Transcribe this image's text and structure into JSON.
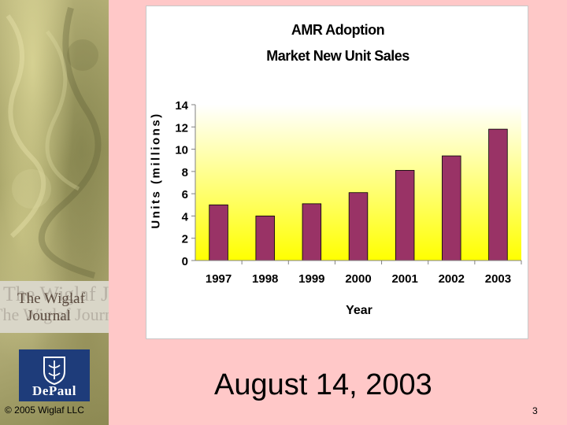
{
  "branding": {
    "journal_logo": "The Wiglaf Journal",
    "university_logo": "DePaul"
  },
  "footer": {
    "copyright": "© 2005 Wiglaf LLC",
    "date": "August 14, 2003",
    "slide_number": "3"
  },
  "chart_data": {
    "type": "bar",
    "title": "AMR Adoption",
    "subtitle": "Market New Unit Sales",
    "xlabel": "Year",
    "ylabel": "Units (millions)",
    "categories": [
      "1997",
      "1998",
      "1999",
      "2000",
      "2001",
      "2002",
      "2003"
    ],
    "values": [
      5.0,
      4.0,
      5.1,
      6.1,
      8.1,
      9.4,
      11.8
    ],
    "ylim": [
      0,
      14
    ],
    "yticks": [
      0,
      2,
      4,
      6,
      8,
      10,
      12,
      14
    ],
    "grid": false,
    "legend": "none",
    "colors": {
      "bar": "#993366",
      "plot_gradient_top": "#ffffff",
      "plot_gradient_bottom": "#ffff00"
    }
  }
}
